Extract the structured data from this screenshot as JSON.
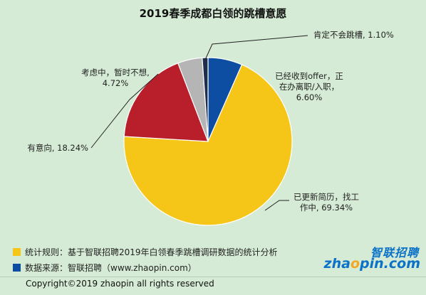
{
  "chart_data": {
    "type": "pie",
    "title": "2019春季成都白领的跳槽意愿",
    "slices": [
      {
        "label": "已经收到offer，正在办离职/入职",
        "value": 6.6,
        "value_text": "6.60%",
        "color": "#0d4ea3"
      },
      {
        "label": "已更新简历，找工作中",
        "value": 69.34,
        "value_text": "69.34%",
        "color": "#f5c518"
      },
      {
        "label": "有意向",
        "value": 18.24,
        "value_text": "18.24%",
        "color": "#b81f2a"
      },
      {
        "label": "考虑中，暂时不想",
        "value": 4.72,
        "value_text": "4.72%",
        "color": "#b5b5b5"
      },
      {
        "label": "肯定不会跳槽",
        "value": 1.1,
        "value_text": "1.10%",
        "color": "#1f2d4d"
      }
    ]
  },
  "labels": {
    "offer_l1": "已经收到offer，正",
    "offer_l2": "在办离职/入职，",
    "offer_l3": "6.60%",
    "jobsearch_l1": "已更新简历，找工",
    "jobsearch_l2": "作中, 69.34%",
    "intent": "有意向, 18.24%",
    "considering_l1": "考虑中，暂时不想,",
    "considering_l2": "4.72%",
    "never": "肯定不会跳槽, 1.10%"
  },
  "notes": [
    {
      "text": "统计规则：基于智联招聘2019年白领春季跳槽调研数据的统计分析",
      "color": "#f5c518"
    },
    {
      "text": "数据来源：智联招聘（www.zhaopin.com）",
      "color": "#0d4ea3"
    }
  ],
  "copyright": "Copyright©2019 zhaopin all rights reserved",
  "logo": {
    "cn": "智联招聘",
    "en_a": "zha",
    "en_o": "o",
    "en_b": "pin.com"
  }
}
